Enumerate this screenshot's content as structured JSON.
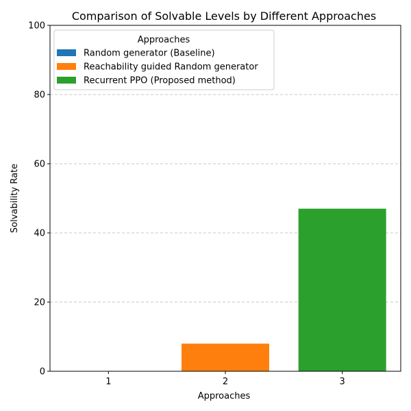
{
  "chart_data": {
    "type": "bar",
    "title": "Comparison of Solvable Levels by Different Approaches",
    "xlabel": "Approaches",
    "ylabel": "Solvability Rate",
    "categories": [
      "1",
      "2",
      "3"
    ],
    "ylim": [
      0,
      100
    ],
    "yticks": [
      0,
      20,
      40,
      60,
      80,
      100
    ],
    "grid": "y-dashed",
    "legend": {
      "title": "Approaches",
      "placement": "top-left"
    },
    "series": [
      {
        "name": "Random generator (Baseline)",
        "category": "1",
        "value": 0,
        "color": "#1f77b4"
      },
      {
        "name": "Reachability guided Random generator",
        "category": "2",
        "value": 8,
        "color": "#ff7f0e"
      },
      {
        "name": "Recurrent PPO (Proposed method)",
        "category": "3",
        "value": 47,
        "color": "#2ca02c"
      }
    ]
  }
}
